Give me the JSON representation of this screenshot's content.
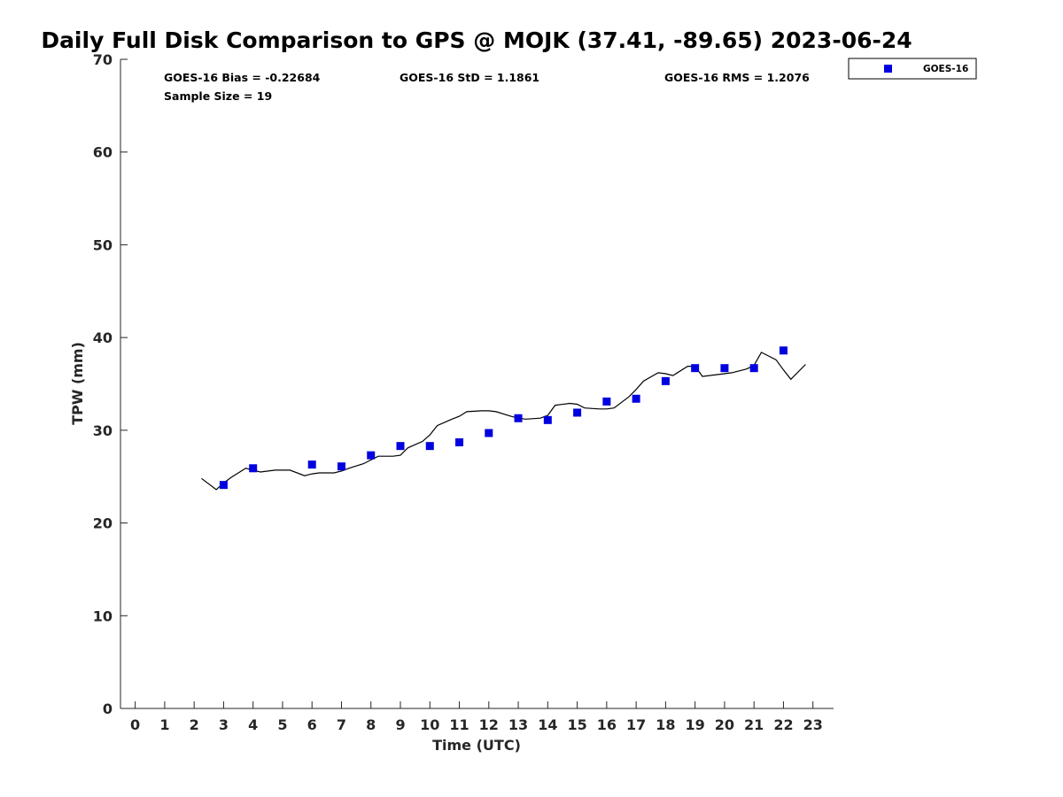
{
  "chart_data": {
    "type": "scatter",
    "title": "Daily Full Disk Comparison to GPS @ MOJK (37.41, -89.65) 2023-06-24",
    "xlabel": "Time (UTC)",
    "ylabel": "TPW (mm)",
    "xlim": [
      -0.5,
      23.7
    ],
    "ylim": [
      0,
      70
    ],
    "xticks": [
      "0",
      "1",
      "2",
      "3",
      "4",
      "5",
      "6",
      "7",
      "8",
      "9",
      "10",
      "11",
      "12",
      "13",
      "14",
      "15",
      "16",
      "17",
      "18",
      "19",
      "20",
      "21",
      "22",
      "23"
    ],
    "yticks": [
      "0",
      "10",
      "20",
      "30",
      "40",
      "50",
      "60",
      "70"
    ],
    "grid": false,
    "legend_position": "top-right",
    "stats": {
      "bias": "GOES-16 Bias = -0.22684",
      "std": "GOES-16 StD = 1.1861",
      "rms": "GOES-16 RMS = 1.2076",
      "sample_size": "Sample Size = 19"
    },
    "series": [
      {
        "name": "GOES-16",
        "kind": "markers",
        "marker": "square",
        "color": "#0000e0",
        "x": [
          3,
          4,
          6,
          7,
          8,
          9,
          10,
          11,
          12,
          13,
          14,
          15,
          16,
          17,
          18,
          19,
          20,
          21,
          22
        ],
        "y": [
          24.1,
          25.9,
          26.3,
          26.1,
          27.3,
          28.3,
          28.3,
          28.7,
          29.7,
          31.3,
          31.1,
          31.9,
          33.1,
          33.4,
          35.3,
          36.7,
          36.7,
          36.7,
          38.6
        ]
      },
      {
        "kind": "line",
        "color": "#000000",
        "x": [
          2.25,
          2.75,
          3.0,
          3.25,
          3.75,
          4.0,
          4.25,
          4.75,
          5.25,
          5.75,
          6.0,
          6.25,
          6.75,
          7.0,
          7.25,
          7.75,
          8.0,
          8.25,
          8.75,
          9.0,
          9.25,
          9.75,
          10.0,
          10.25,
          10.75,
          11.0,
          11.25,
          11.75,
          12.0,
          12.25,
          12.75,
          13.0,
          13.25,
          13.75,
          14.0,
          14.25,
          14.75,
          15.0,
          15.25,
          15.75,
          16.0,
          16.25,
          16.75,
          17.0,
          17.25,
          17.75,
          18.0,
          18.25,
          18.75,
          19.0,
          19.25,
          19.75,
          20.0,
          20.25,
          20.75,
          21.0,
          21.25,
          21.75,
          22.0,
          22.25,
          22.75
        ],
        "y": [
          24.8,
          23.6,
          24.3,
          24.9,
          25.9,
          25.7,
          25.5,
          25.7,
          25.7,
          25.1,
          25.3,
          25.4,
          25.4,
          25.6,
          25.9,
          26.4,
          26.8,
          27.2,
          27.2,
          27.3,
          28.1,
          28.8,
          29.5,
          30.5,
          31.2,
          31.5,
          32.0,
          32.1,
          32.1,
          32.0,
          31.5,
          31.3,
          31.2,
          31.3,
          31.6,
          32.7,
          32.9,
          32.8,
          32.4,
          32.3,
          32.3,
          32.4,
          33.6,
          34.4,
          35.3,
          36.2,
          36.1,
          35.9,
          36.9,
          36.9,
          35.8,
          36.0,
          36.1,
          36.2,
          36.6,
          37.0,
          38.4,
          37.6,
          36.5,
          35.5,
          37.1
        ]
      }
    ]
  }
}
